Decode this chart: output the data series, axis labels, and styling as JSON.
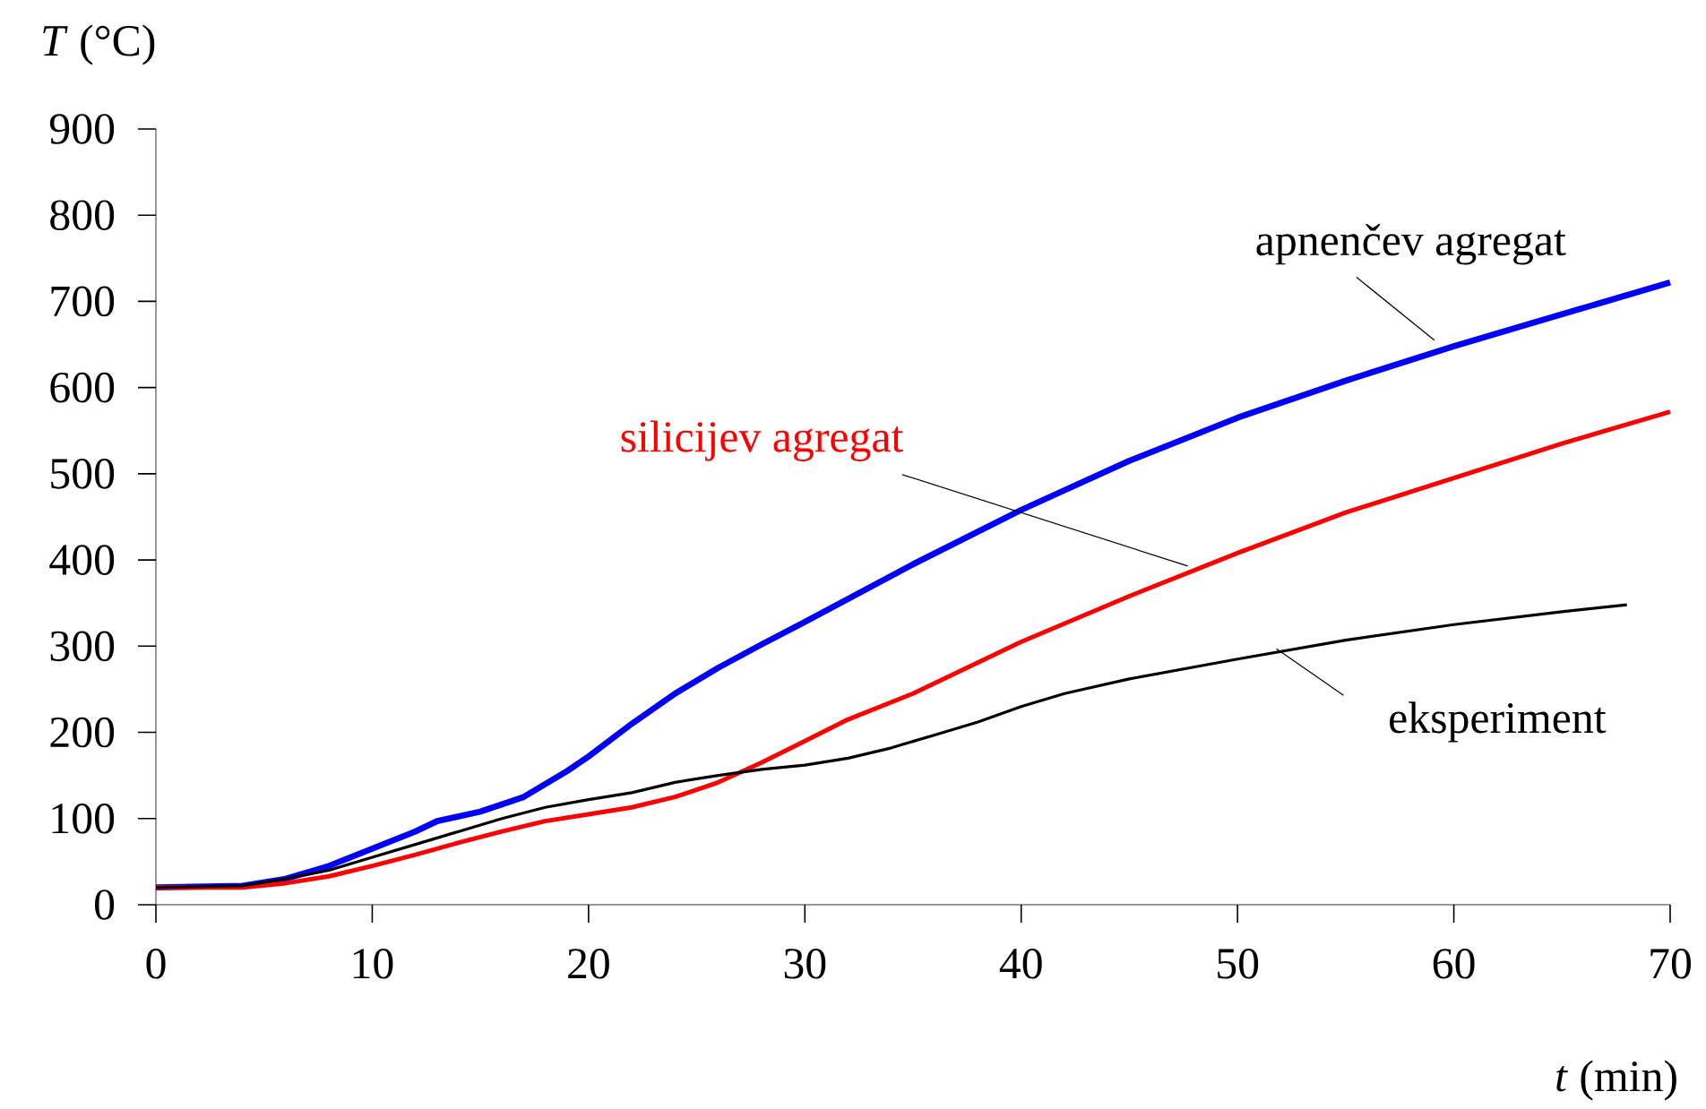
{
  "chart_data": {
    "type": "line",
    "xlabel": "*t*  (min)",
    "ylabel": "*T*  (°C)",
    "xlim": [
      0,
      70
    ],
    "xticks": [
      0,
      10,
      20,
      30,
      40,
      50,
      60,
      70
    ],
    "ylim": [
      0,
      900
    ],
    "yticks": [
      0,
      100,
      200,
      300,
      400,
      500,
      600,
      700,
      800,
      900
    ],
    "grid": false,
    "legend": false,
    "marker": "none",
    "line_style": "solid",
    "series": [
      {
        "name": "apnenčev agregat",
        "color": "#0000ff",
        "x": [
          0,
          4,
          6,
          8,
          10,
          12,
          13,
          15,
          17,
          19,
          20,
          22,
          24,
          26,
          28,
          30,
          35,
          40,
          45,
          50,
          55,
          60,
          65,
          70
        ],
        "values": [
          20,
          22,
          30,
          45,
          65,
          85,
          97,
          108,
          125,
          155,
          172,
          210,
          245,
          275,
          302,
          328,
          395,
          458,
          515,
          565,
          608,
          648,
          685,
          722
        ]
      },
      {
        "name": "silicijev agregat",
        "color": "#ff0000",
        "x": [
          0,
          4,
          6,
          8,
          10,
          12,
          14,
          16,
          18,
          20,
          22,
          24,
          26,
          28,
          30,
          32,
          35,
          40,
          45,
          50,
          55,
          60,
          65,
          70
        ],
        "values": [
          20,
          20,
          25,
          33,
          45,
          58,
          72,
          85,
          97,
          105,
          113,
          125,
          142,
          165,
          190,
          215,
          245,
          305,
          358,
          408,
          455,
          495,
          535,
          572
        ]
      },
      {
        "name": "eksperiment",
        "color": "#000000",
        "x": [
          0,
          4,
          6,
          8,
          10,
          12,
          14,
          16,
          18,
          20,
          22,
          24,
          26,
          28,
          30,
          32,
          34,
          36,
          38,
          40,
          42,
          45,
          50,
          55,
          60,
          65,
          68
        ],
        "values": [
          20,
          22,
          30,
          40,
          55,
          70,
          85,
          100,
          113,
          122,
          130,
          142,
          150,
          157,
          162,
          170,
          182,
          197,
          212,
          230,
          245,
          262,
          285,
          307,
          325,
          340,
          348
        ]
      }
    ]
  }
}
